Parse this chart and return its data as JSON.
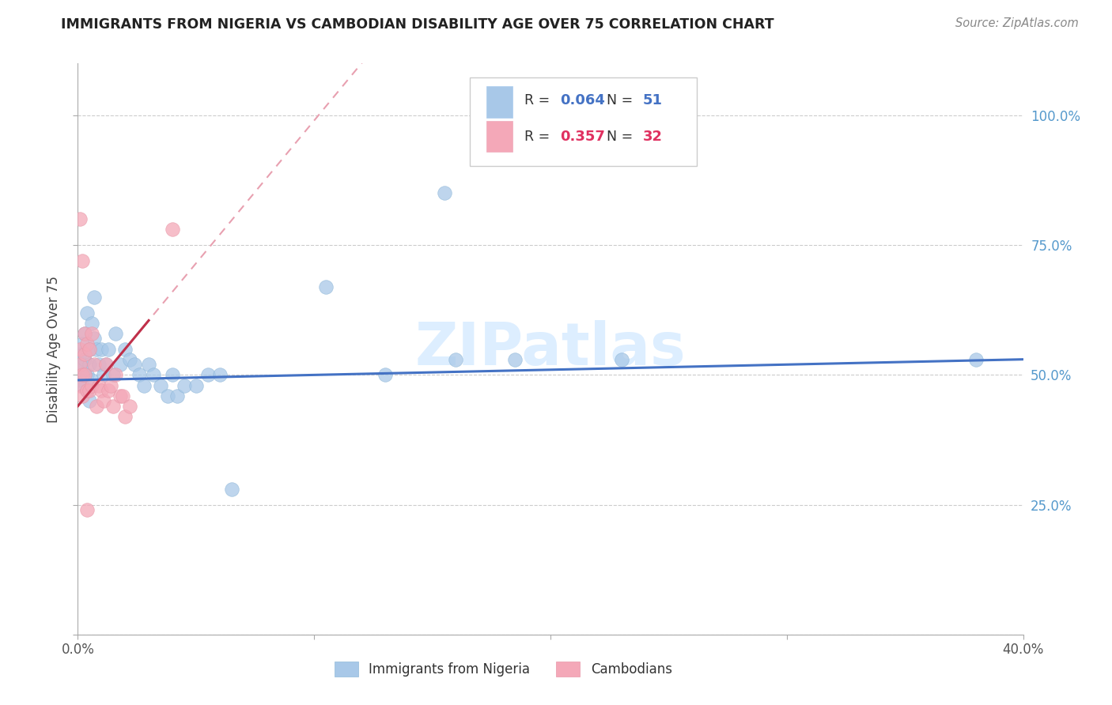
{
  "title": "IMMIGRANTS FROM NIGERIA VS CAMBODIAN DISABILITY AGE OVER 75 CORRELATION CHART",
  "source": "Source: ZipAtlas.com",
  "ylabel": "Disability Age Over 75",
  "legend_label1": "Immigrants from Nigeria",
  "legend_label2": "Cambodians",
  "r1": "0.064",
  "n1": "51",
  "r2": "0.357",
  "n2": "32",
  "color1": "#a8c8e8",
  "color2": "#f4a8b8",
  "trendline1_color": "#4472c4",
  "trendline2_color": "#c0304a",
  "trendline2_dash_color": "#e8a0b0",
  "background": "#ffffff",
  "grid_color": "#cccccc",
  "watermark": "ZIPatlas",
  "xlim": [
    0.0,
    0.4
  ],
  "ylim": [
    0.0,
    1.1
  ],
  "nigeria_x": [
    0.001,
    0.001,
    0.001,
    0.002,
    0.002,
    0.002,
    0.003,
    0.003,
    0.003,
    0.004,
    0.004,
    0.004,
    0.005,
    0.005,
    0.005,
    0.006,
    0.006,
    0.007,
    0.007,
    0.008,
    0.009,
    0.01,
    0.011,
    0.012,
    0.013,
    0.015,
    0.016,
    0.018,
    0.02,
    0.022,
    0.024,
    0.026,
    0.028,
    0.03,
    0.032,
    0.035,
    0.038,
    0.04,
    0.042,
    0.045,
    0.05,
    0.055,
    0.06,
    0.065,
    0.105,
    0.16,
    0.185,
    0.23,
    0.155,
    0.38,
    0.13
  ],
  "nigeria_y": [
    0.51,
    0.54,
    0.49,
    0.52,
    0.56,
    0.48,
    0.53,
    0.5,
    0.58,
    0.5,
    0.62,
    0.47,
    0.55,
    0.52,
    0.45,
    0.6,
    0.49,
    0.65,
    0.57,
    0.55,
    0.52,
    0.55,
    0.5,
    0.52,
    0.55,
    0.5,
    0.58,
    0.52,
    0.55,
    0.53,
    0.52,
    0.5,
    0.48,
    0.52,
    0.5,
    0.48,
    0.46,
    0.5,
    0.46,
    0.48,
    0.48,
    0.5,
    0.5,
    0.28,
    0.67,
    0.53,
    0.53,
    0.53,
    0.85,
    0.53,
    0.5
  ],
  "cambodian_x": [
    0.001,
    0.001,
    0.001,
    0.001,
    0.002,
    0.002,
    0.002,
    0.003,
    0.003,
    0.003,
    0.004,
    0.004,
    0.005,
    0.005,
    0.006,
    0.006,
    0.007,
    0.008,
    0.009,
    0.01,
    0.011,
    0.012,
    0.013,
    0.014,
    0.015,
    0.016,
    0.018,
    0.019,
    0.02,
    0.022,
    0.04,
    0.004
  ],
  "cambodian_y": [
    0.52,
    0.55,
    0.8,
    0.48,
    0.5,
    0.72,
    0.46,
    0.54,
    0.58,
    0.5,
    0.56,
    0.47,
    0.55,
    0.47,
    0.58,
    0.48,
    0.52,
    0.44,
    0.48,
    0.47,
    0.45,
    0.52,
    0.47,
    0.48,
    0.44,
    0.5,
    0.46,
    0.46,
    0.42,
    0.44,
    0.78,
    0.24
  ]
}
